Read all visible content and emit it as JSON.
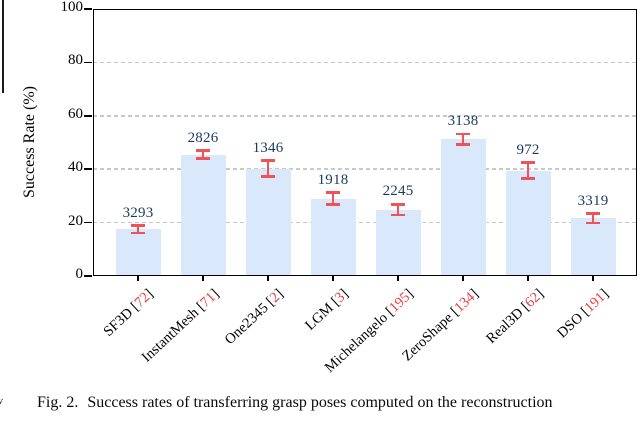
{
  "figure": {
    "caption_label": "Fig. 2.",
    "caption_text": "Success rates of transferring grasp poses computed on the reconstruction",
    "edge_fragment": "v"
  },
  "chart_data": {
    "type": "bar",
    "title": "",
    "xlabel": "",
    "ylabel": "Success Rate (%)",
    "ylim": [
      0,
      100
    ],
    "yticks": [
      0,
      20,
      40,
      60,
      80,
      100
    ],
    "gridlines_at": [
      20,
      40,
      60,
      80
    ],
    "grid_style": "dashed",
    "legend": null,
    "x_label_rotation_deg": 43,
    "colors": {
      "bar_fill": "#d9e8fa",
      "error_bar": "#f15257",
      "value_label": "#1c3a5e",
      "citation": "#ee3b3e",
      "gridline": "#c9c9c9",
      "axis": "#000000"
    },
    "cite_prefix": " [",
    "cite_suffix": "]",
    "categories": [
      {
        "name": "SF3D",
        "citation": "72",
        "value": 17.5,
        "error": 1.4,
        "count_label": "3293"
      },
      {
        "name": "InstantMesh",
        "citation": "71",
        "value": 45.5,
        "error": 1.5,
        "count_label": "2826"
      },
      {
        "name": "One2345",
        "citation": "2",
        "value": 40.2,
        "error": 3.0,
        "count_label": "1346"
      },
      {
        "name": "LGM",
        "citation": "3",
        "value": 29.0,
        "error": 2.2,
        "count_label": "1918"
      },
      {
        "name": "Michelangelo",
        "citation": "195",
        "value": 24.8,
        "error": 2.0,
        "count_label": "2245"
      },
      {
        "name": "ZeroShape",
        "citation": "134",
        "value": 51.2,
        "error": 2.0,
        "count_label": "3138"
      },
      {
        "name": "Real3D",
        "citation": "62",
        "value": 39.5,
        "error": 3.0,
        "count_label": "972"
      },
      {
        "name": "DSO",
        "citation": "191",
        "value": 21.6,
        "error": 1.8,
        "count_label": "3319"
      }
    ]
  }
}
